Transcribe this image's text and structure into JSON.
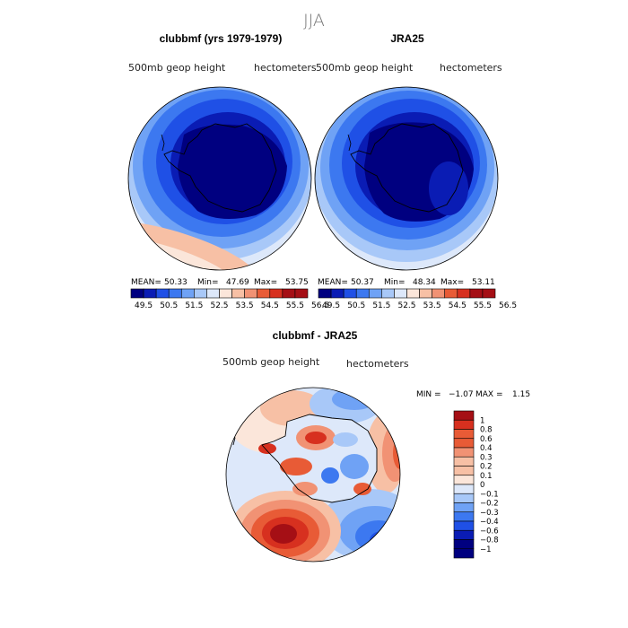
{
  "page_title": "JJA",
  "colors": {
    "deep_navy": "#000080",
    "navy": "#0a1cb4",
    "blue": "#1f50e6",
    "mid_blue": "#3c78f0",
    "light_blue": "#6fa2f5",
    "pale_blue": "#a8c8f8",
    "pale": "#dde8fa",
    "cream": "#fbe6da",
    "peach": "#f7c0a5",
    "salmon": "#f19274",
    "orange_red": "#e85b36",
    "red": "#d7301f",
    "dark_red": "#a50f15"
  },
  "chart_data": [
    {
      "type": "heatmap",
      "projection": "south polar stereographic",
      "title": "clubbmf (yrs 1979-1979)",
      "left_label": "500mb geop height",
      "right_label": "hectometers",
      "stats": {
        "mean_label": "MEAN=",
        "mean": "50.33",
        "min_label": "Min=",
        "min": "47.69",
        "max_label": "Max=",
        "max": "53.75"
      },
      "colorbar_levels": [
        "49.5",
        "50.5",
        "51.5",
        "52.5",
        "53.5",
        "54.5",
        "55.5",
        "56.5"
      ]
    },
    {
      "type": "heatmap",
      "projection": "south polar stereographic",
      "title": "JRA25",
      "left_label": "500mb geop height",
      "right_label": "hectometers",
      "stats": {
        "mean_label": "MEAN=",
        "mean": "50.37",
        "min_label": "Min=",
        "min": "48.34",
        "max_label": "Max=",
        "max": "53.11"
      },
      "colorbar_levels": [
        "49.5",
        "50.5",
        "51.5",
        "52.5",
        "53.5",
        "54.5",
        "55.5",
        "56.5"
      ]
    },
    {
      "type": "heatmap",
      "projection": "south polar stereographic",
      "title": "clubbmf - JRA25",
      "left_label": "500mb geop height",
      "right_label": "hectometers",
      "stats": {
        "min_label": "MIN =",
        "min": "−1.07",
        "max_label": "MAX =",
        "max": "1.15"
      },
      "colorbar_levels": [
        "1",
        "0.8",
        "0.6",
        "0.4",
        "0.3",
        "0.2",
        "0.1",
        "0",
        "−0.1",
        "−0.2",
        "−0.3",
        "−0.4",
        "−0.6",
        "−0.8",
        "−1"
      ]
    }
  ]
}
